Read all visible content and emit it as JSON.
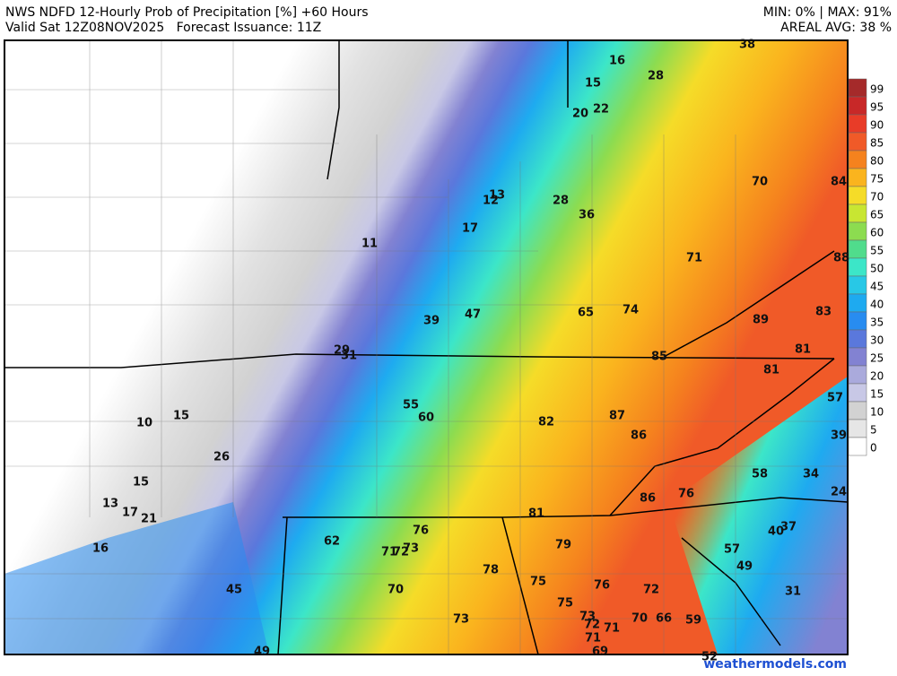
{
  "header": {
    "title": "NWS NDFD 12-Hourly Prob of Precipitation [%] +60 Hours",
    "subtitle": "Valid Sat 12Z08NOV2025   Forecast Issuance: 11Z",
    "minmax": "MIN: 0% | MAX: 91%",
    "areal_avg": "AREAL AVG: 38 %"
  },
  "colorbar": {
    "ticks": [
      99,
      95,
      90,
      85,
      80,
      75,
      70,
      65,
      60,
      55,
      50,
      45,
      40,
      35,
      30,
      25,
      20,
      15,
      10,
      5,
      0
    ],
    "colors": [
      "#a52a2a",
      "#c82828",
      "#e83c28",
      "#f05a28",
      "#f5821e",
      "#fab41e",
      "#f5dc28",
      "#c8e632",
      "#8cdc50",
      "#50dc8c",
      "#3ce6c8",
      "#28c8e6",
      "#1eaaf0",
      "#288cf0",
      "#5a78dc",
      "#8282d2",
      "#aaaadc",
      "#c8c8e6",
      "#d2d2d2",
      "#e6e6e6",
      "#ffffff"
    ]
  },
  "points": [
    38,
    16,
    28,
    15,
    20,
    22,
    70,
    84,
    13,
    12,
    28,
    36,
    17,
    11,
    71,
    88,
    39,
    47,
    65,
    74,
    89,
    83,
    29,
    31,
    85,
    81,
    81,
    57,
    55,
    60,
    82,
    87,
    86,
    10,
    15,
    39,
    26,
    58,
    34,
    15,
    86,
    76,
    24,
    13,
    17,
    21,
    81,
    76,
    37,
    40,
    62,
    79,
    57,
    16,
    71,
    72,
    73,
    78,
    49,
    75,
    76,
    72,
    45,
    70,
    31,
    75,
    73,
    72,
    71,
    70,
    66,
    59,
    73,
    71,
    69,
    49,
    52
  ],
  "watermark": "weathermodels.com"
}
